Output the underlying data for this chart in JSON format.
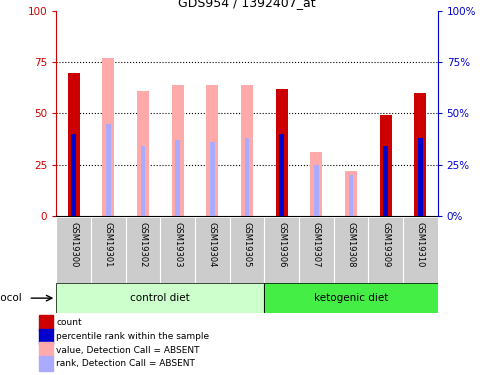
{
  "title": "GDS954 / 1392407_at",
  "samples": [
    "GSM19300",
    "GSM19301",
    "GSM19302",
    "GSM19303",
    "GSM19304",
    "GSM19305",
    "GSM19306",
    "GSM19307",
    "GSM19308",
    "GSM19309",
    "GSM19310"
  ],
  "count_values": [
    70,
    0,
    0,
    0,
    0,
    0,
    62,
    0,
    0,
    49,
    60
  ],
  "percentile_rank": [
    40,
    0,
    0,
    0,
    0,
    0,
    40,
    0,
    0,
    34,
    38
  ],
  "absent_value": [
    0,
    77,
    61,
    64,
    64,
    64,
    0,
    31,
    22,
    0,
    0
  ],
  "absent_rank": [
    0,
    45,
    34,
    37,
    36,
    38,
    0,
    25,
    20,
    0,
    0
  ],
  "control_diet_indices": [
    0,
    1,
    2,
    3,
    4,
    5
  ],
  "ketogenic_diet_indices": [
    6,
    7,
    8,
    9,
    10
  ],
  "control_diet_color_light": "#ccffcc",
  "control_diet_color_dark": "#44ee44",
  "ketogenic_diet_color": "#44ee44",
  "ylim": [
    0,
    100
  ],
  "yticks": [
    0,
    25,
    50,
    75,
    100
  ],
  "left_axis_color": "#cc0000",
  "right_axis_color": "#0000cc",
  "bar_color_red": "#cc0000",
  "bar_color_blue": "#0000cc",
  "bar_color_pink": "#ffaaaa",
  "bar_color_lightblue": "#aaaaff",
  "tick_area_color": "#cccccc",
  "legend_items": [
    {
      "color": "#cc0000",
      "label": "count"
    },
    {
      "color": "#0000cc",
      "label": "percentile rank within the sample"
    },
    {
      "color": "#ffaaaa",
      "label": "value, Detection Call = ABSENT"
    },
    {
      "color": "#aaaaff",
      "label": "rank, Detection Call = ABSENT"
    }
  ]
}
